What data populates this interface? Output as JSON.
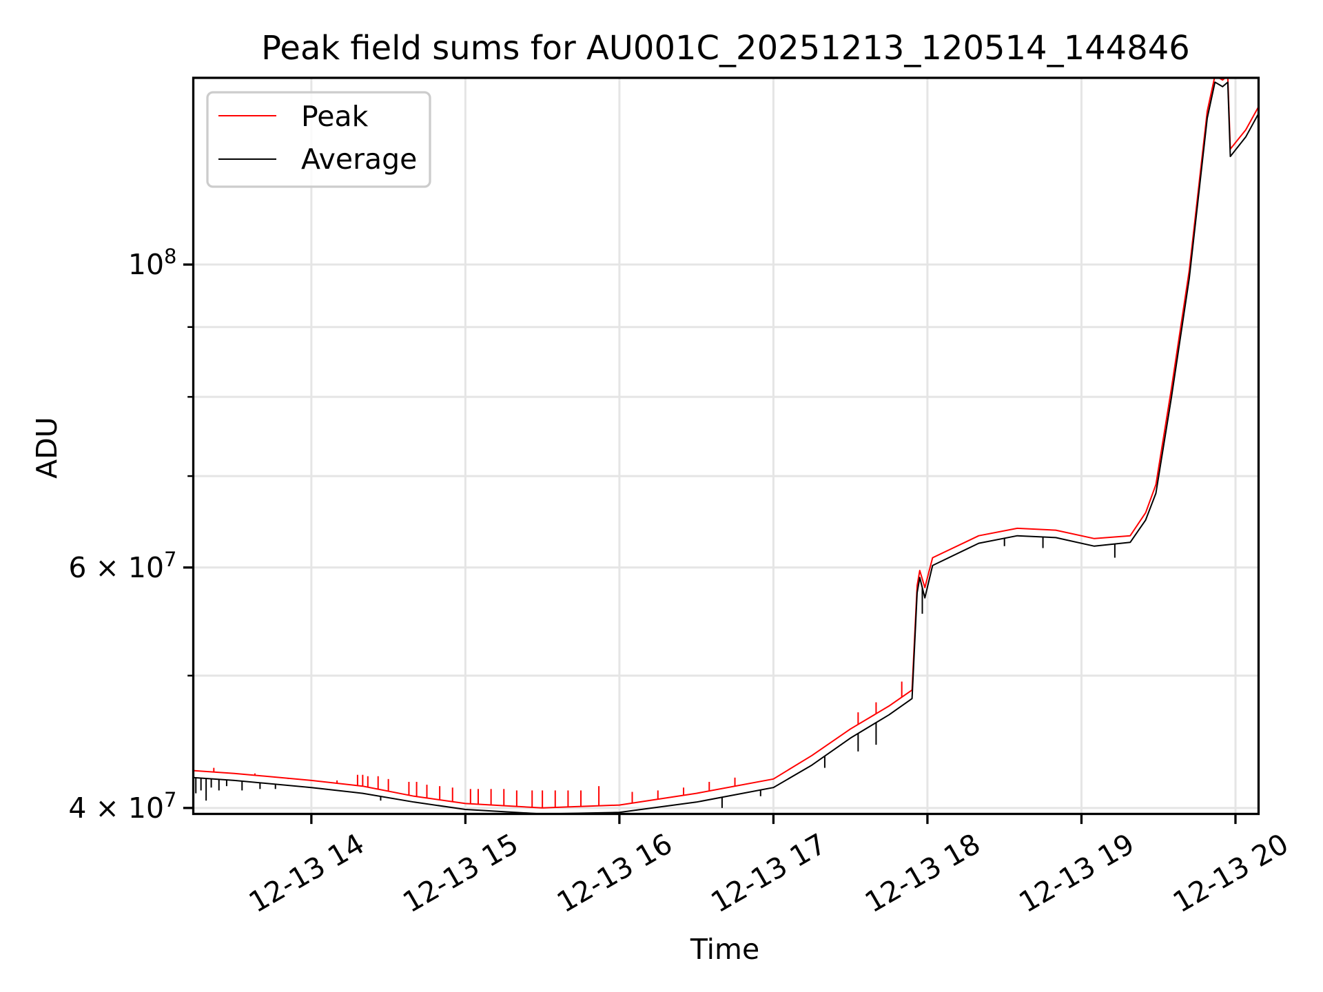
{
  "chart_data": {
    "type": "line",
    "title": "Peak field sums for AU001C_20251213_120514_144846",
    "xlabel": "Time",
    "ylabel": "ADU",
    "yscale": "log",
    "xlim": [
      "13:14",
      "20:09"
    ],
    "ylim": [
      39600000,
      137000000
    ],
    "grid": true,
    "legend_placement": "top-left",
    "x_ticks": [
      {
        "t": "14:00",
        "label": "12-13 14"
      },
      {
        "t": "15:00",
        "label": "12-13 15"
      },
      {
        "t": "16:00",
        "label": "12-13 16"
      },
      {
        "t": "17:00",
        "label": "12-13 17"
      },
      {
        "t": "18:00",
        "label": "12-13 18"
      },
      {
        "t": "19:00",
        "label": "12-13 19"
      },
      {
        "t": "20:00",
        "label": "12-13 20"
      }
    ],
    "y_ticks_major": [
      {
        "v": 40000000,
        "base": "4",
        "mant": "10",
        "exp": "7"
      },
      {
        "v": 60000000,
        "base": "6",
        "mant": "10",
        "exp": "7"
      },
      {
        "v": 100000000,
        "base": "",
        "mant": "10",
        "exp": "8"
      }
    ],
    "y_ticks_minor": [
      50000000,
      70000000,
      80000000,
      90000000
    ],
    "series": [
      {
        "name": "Peak",
        "color": "#ff0000",
        "points": [
          [
            "13:14",
            4.26
          ],
          [
            "13:30",
            4.24
          ],
          [
            "14:00",
            4.19
          ],
          [
            "14:20",
            4.15
          ],
          [
            "14:40",
            4.08
          ],
          [
            "15:00",
            4.03
          ],
          [
            "15:30",
            4.0
          ],
          [
            "16:00",
            4.02
          ],
          [
            "16:30",
            4.1
          ],
          [
            "17:00",
            4.2
          ],
          [
            "17:15",
            4.37
          ],
          [
            "17:30",
            4.57
          ],
          [
            "17:45",
            4.75
          ],
          [
            "17:54",
            4.88
          ],
          [
            "17:56",
            5.82
          ],
          [
            "17:57",
            5.97
          ],
          [
            "17:59",
            5.8
          ],
          [
            "18:02",
            6.1
          ],
          [
            "18:20",
            6.33
          ],
          [
            "18:35",
            6.41
          ],
          [
            "18:50",
            6.39
          ],
          [
            "19:05",
            6.3
          ],
          [
            "19:19",
            6.33
          ],
          [
            "19:25",
            6.58
          ],
          [
            "19:29",
            6.9
          ],
          [
            "19:35",
            8.1
          ],
          [
            "19:42",
            9.9
          ],
          [
            "19:49",
            12.95
          ],
          [
            "19:52",
            13.75
          ],
          [
            "19:55",
            13.65
          ],
          [
            "19:57",
            13.75
          ],
          [
            "19:58",
            12.15
          ],
          [
            "20:04",
            12.55
          ],
          [
            "20:09",
            13.05
          ]
        ],
        "spikes": [
          [
            "13:22",
            4.28
          ],
          [
            "13:38",
            4.24
          ],
          [
            "13:51",
            4.2
          ],
          [
            "14:10",
            4.19
          ],
          [
            "14:18",
            4.23
          ],
          [
            "14:20",
            4.23
          ],
          [
            "14:22",
            4.22
          ],
          [
            "14:26",
            4.22
          ],
          [
            "14:30",
            4.2
          ],
          [
            "14:38",
            4.18
          ],
          [
            "14:41",
            4.18
          ],
          [
            "14:45",
            4.16
          ],
          [
            "14:50",
            4.15
          ],
          [
            "14:55",
            4.14
          ],
          [
            "15:02",
            4.13
          ],
          [
            "15:05",
            4.13
          ],
          [
            "15:10",
            4.13
          ],
          [
            "15:15",
            4.13
          ],
          [
            "15:20",
            4.12
          ],
          [
            "15:26",
            4.12
          ],
          [
            "15:30",
            4.12
          ],
          [
            "15:35",
            4.12
          ],
          [
            "15:40",
            4.12
          ],
          [
            "15:45",
            4.12
          ],
          [
            "15:52",
            4.15
          ],
          [
            "16:05",
            4.11
          ],
          [
            "16:15",
            4.12
          ],
          [
            "16:25",
            4.14
          ],
          [
            "16:35",
            4.18
          ],
          [
            "16:45",
            4.21
          ],
          [
            "17:33",
            4.7
          ],
          [
            "17:40",
            4.78
          ],
          [
            "17:50",
            4.95
          ]
        ]
      },
      {
        "name": "Average",
        "color": "#000000",
        "points": [
          [
            "13:14",
            4.21
          ],
          [
            "13:30",
            4.19
          ],
          [
            "14:00",
            4.14
          ],
          [
            "14:20",
            4.1
          ],
          [
            "14:40",
            4.04
          ],
          [
            "15:00",
            3.99
          ],
          [
            "15:30",
            3.96
          ],
          [
            "16:00",
            3.97
          ],
          [
            "16:30",
            4.04
          ],
          [
            "17:00",
            4.14
          ],
          [
            "17:15",
            4.3
          ],
          [
            "17:30",
            4.5
          ],
          [
            "17:45",
            4.68
          ],
          [
            "17:54",
            4.81
          ],
          [
            "17:56",
            5.75
          ],
          [
            "17:57",
            5.9
          ],
          [
            "17:59",
            5.7
          ],
          [
            "18:02",
            6.02
          ],
          [
            "18:20",
            6.25
          ],
          [
            "18:35",
            6.33
          ],
          [
            "18:50",
            6.31
          ],
          [
            "19:05",
            6.22
          ],
          [
            "19:19",
            6.26
          ],
          [
            "19:25",
            6.5
          ],
          [
            "19:29",
            6.8
          ],
          [
            "19:35",
            7.98
          ],
          [
            "19:42",
            9.77
          ],
          [
            "19:49",
            12.8
          ],
          [
            "19:52",
            13.6
          ],
          [
            "19:55",
            13.5
          ],
          [
            "19:57",
            13.6
          ],
          [
            "19:58",
            12.0
          ],
          [
            "20:04",
            12.4
          ],
          [
            "20:09",
            12.9
          ]
        ],
        "spikes": [
          [
            "13:15",
            4.1
          ],
          [
            "13:17",
            4.12
          ],
          [
            "13:19",
            4.05
          ],
          [
            "13:21",
            4.14
          ],
          [
            "13:24",
            4.12
          ],
          [
            "13:27",
            4.15
          ],
          [
            "13:33",
            4.12
          ],
          [
            "13:40",
            4.13
          ],
          [
            "13:46",
            4.13
          ],
          [
            "14:27",
            4.05
          ],
          [
            "15:50",
            3.96
          ],
          [
            "16:40",
            4.0
          ],
          [
            "16:55",
            4.08
          ],
          [
            "17:20",
            4.28
          ],
          [
            "17:33",
            4.4
          ],
          [
            "17:40",
            4.45
          ],
          [
            "17:58",
            5.55
          ],
          [
            "18:30",
            6.22
          ],
          [
            "18:45",
            6.2
          ],
          [
            "19:13",
            6.1
          ]
        ]
      }
    ],
    "value_scale": 10000000
  }
}
